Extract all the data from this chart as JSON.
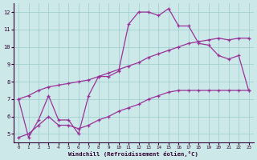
{
  "xlabel": "Windchill (Refroidissement éolien,°C)",
  "xlim": [
    -0.5,
    23.5
  ],
  "ylim": [
    4.5,
    12.5
  ],
  "xticks": [
    0,
    1,
    2,
    3,
    4,
    5,
    6,
    7,
    8,
    9,
    10,
    11,
    12,
    13,
    14,
    15,
    16,
    17,
    18,
    19,
    20,
    21,
    22,
    23
  ],
  "yticks": [
    5,
    6,
    7,
    8,
    9,
    10,
    11,
    12
  ],
  "bg_color": "#cce8e8",
  "grid_color": "#99cccc",
  "line_color": "#993399",
  "line1_x": [
    0,
    1,
    2,
    3,
    4,
    5,
    6,
    7,
    8,
    9,
    10,
    11,
    12,
    13,
    14,
    15,
    16,
    17,
    18,
    19,
    20,
    21,
    22,
    23
  ],
  "line1_y": [
    7.0,
    4.8,
    5.8,
    7.2,
    5.8,
    5.8,
    5.0,
    7.2,
    8.3,
    8.3,
    8.6,
    11.3,
    12.0,
    12.0,
    11.8,
    12.2,
    11.2,
    11.2,
    10.2,
    10.1,
    9.5,
    9.3,
    9.5,
    7.5
  ],
  "line2_x": [
    0,
    1,
    2,
    3,
    4,
    5,
    6,
    7,
    8,
    9,
    10,
    11,
    12,
    13,
    14,
    15,
    16,
    17,
    18,
    19,
    20,
    21,
    22,
    23
  ],
  "line2_y": [
    7.0,
    7.2,
    7.5,
    7.7,
    7.8,
    7.9,
    8.0,
    8.1,
    8.3,
    8.5,
    8.7,
    8.9,
    9.1,
    9.4,
    9.6,
    9.8,
    10.0,
    10.2,
    10.3,
    10.4,
    10.5,
    10.4,
    10.5,
    10.5
  ],
  "line3_x": [
    0,
    1,
    2,
    3,
    4,
    5,
    6,
    7,
    8,
    9,
    10,
    11,
    12,
    13,
    14,
    15,
    16,
    17,
    18,
    19,
    20,
    21,
    22,
    23
  ],
  "line3_y": [
    4.8,
    5.0,
    5.5,
    6.0,
    5.5,
    5.5,
    5.3,
    5.5,
    5.8,
    6.0,
    6.3,
    6.5,
    6.7,
    7.0,
    7.2,
    7.4,
    7.5,
    7.5,
    7.5,
    7.5,
    7.5,
    7.5,
    7.5,
    7.5
  ]
}
